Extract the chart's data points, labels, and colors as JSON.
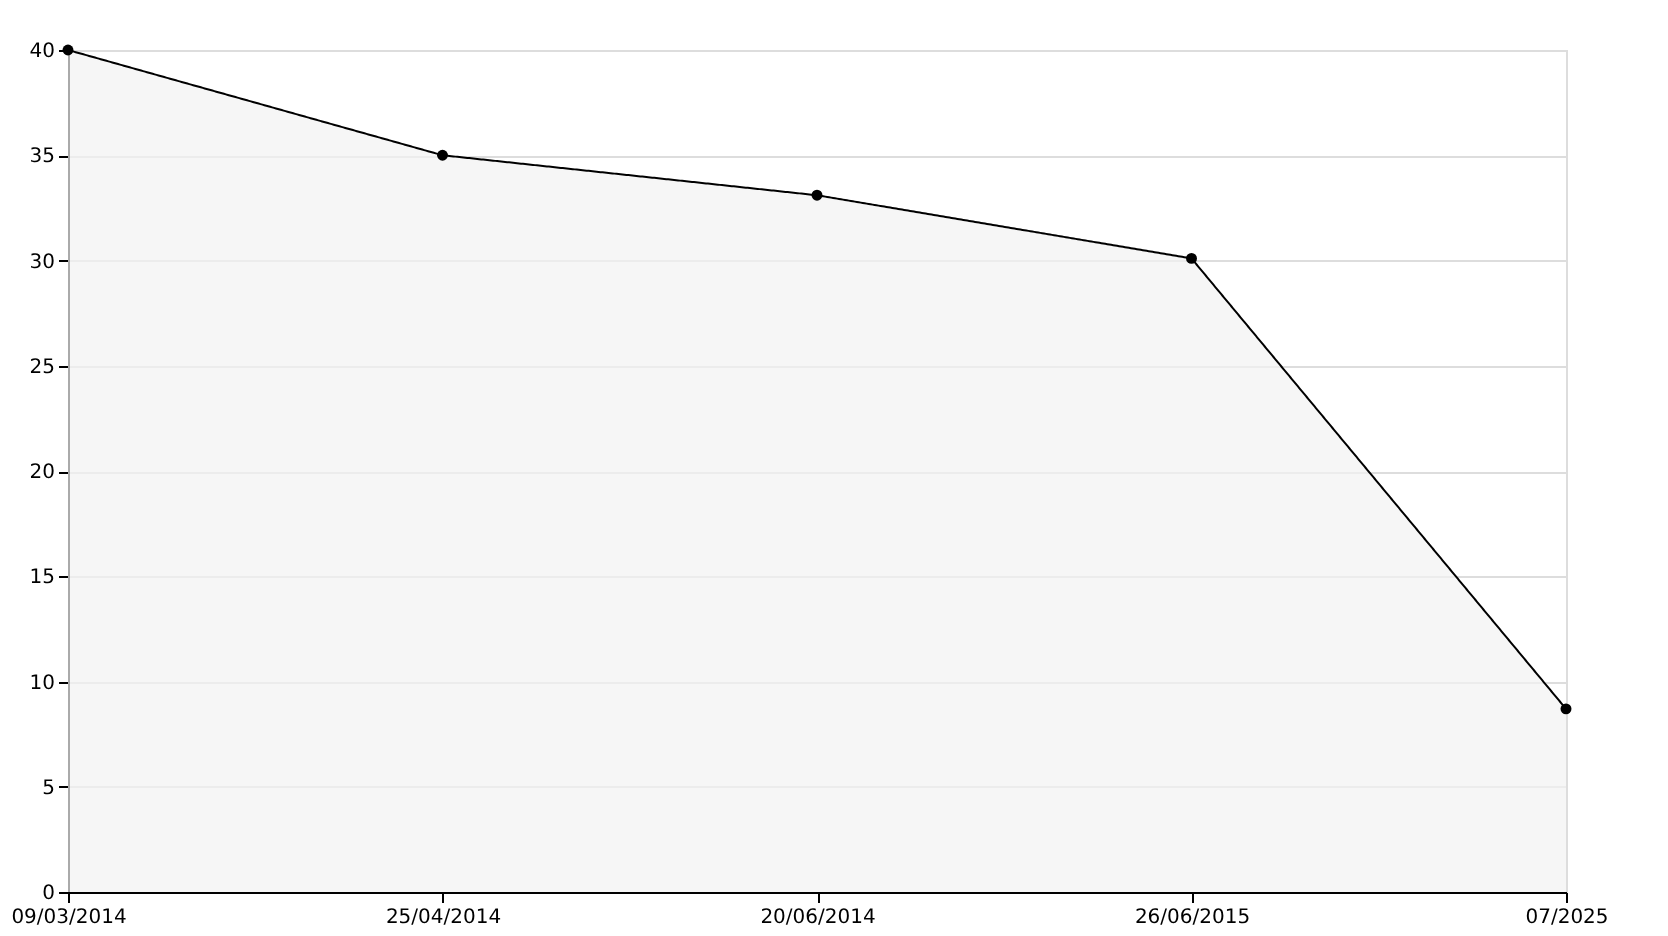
{
  "chart_data": {
    "type": "area",
    "categories": [
      "09/03/2014",
      "25/04/2014",
      "20/06/2014",
      "26/06/2015",
      "07/2025"
    ],
    "series": [
      {
        "color": "#f2f2f2",
        "values": [
          40,
          35,
          33.1,
          30.1,
          8.7
        ]
      }
    ],
    "ylim": [
      0,
      40
    ],
    "yticks": [
      0,
      5,
      10,
      15,
      20,
      25,
      30,
      35,
      40
    ],
    "grid": "y",
    "marker": "circle",
    "line_style": "solid"
  }
}
